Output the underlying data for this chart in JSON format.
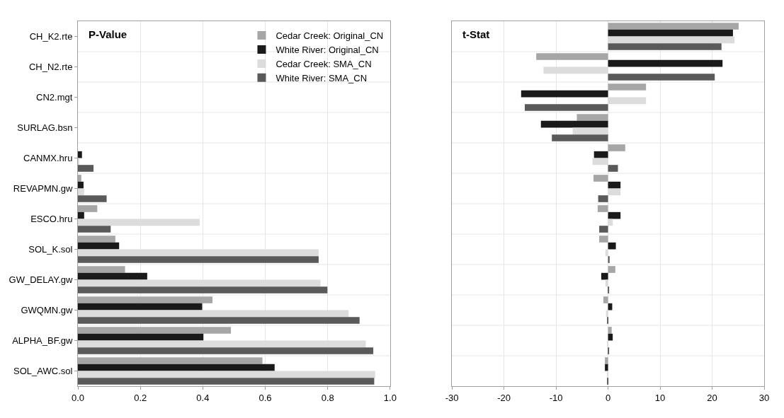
{
  "chart_data": [
    {
      "type": "bar",
      "orientation": "horizontal",
      "title": "P-Value",
      "categories": [
        "CH_K2.rte",
        "CH_N2.rte",
        "CN2.mgt",
        "SURLAG.bsn",
        "CANMX.hru",
        "REVAPMN.gw",
        "ESCO.hru",
        "SOL_K.sol",
        "GW_DELAY.gw",
        "GWQMN.gw",
        "ALPHA_BF.gw",
        "SOL_AWC.sol"
      ],
      "series": [
        {
          "name": "Cedar Creek: Original_CN",
          "color": "#a6a6a6",
          "values": [
            0,
            0,
            0,
            0,
            0,
            0.011,
            0.062,
            0.12,
            0.151,
            0.431,
            0.49,
            0.591
          ]
        },
        {
          "name": "White River: Original_CN",
          "color": "#1a1a1a",
          "values": [
            0,
            0,
            0,
            0,
            0.013,
            0.018,
            0.02,
            0.132,
            0.222,
            0.398,
            0.402,
            0.63
          ]
        },
        {
          "name": "Cedar Creek: SMA_CN",
          "color": "#dcdcdc",
          "values": [
            0,
            0,
            0,
            0,
            0.003,
            0.02,
            0.39,
            0.771,
            0.777,
            0.867,
            0.922,
            0.952
          ]
        },
        {
          "name": "White River: SMA_CN",
          "color": "#5a5a5a",
          "values": [
            0,
            0,
            0,
            0,
            0.05,
            0.092,
            0.105,
            0.771,
            0.799,
            0.902,
            0.946,
            0.949
          ]
        }
      ],
      "xlim": [
        0,
        1.0
      ],
      "xticks": [
        {
          "value": 0,
          "label": "0.0"
        },
        {
          "value": 0.2,
          "label": "0.2"
        },
        {
          "value": 0.4,
          "label": "0.4"
        },
        {
          "value": 0.6,
          "label": "0.6"
        },
        {
          "value": 0.8,
          "label": "0.8"
        },
        {
          "value": 1.0,
          "label": "1.0"
        }
      ],
      "grid": true,
      "legend": "top right"
    },
    {
      "type": "bar",
      "orientation": "horizontal",
      "title": "t-Stat",
      "categories": [
        null,
        null,
        null,
        null,
        null,
        null,
        null,
        null,
        null,
        null,
        null,
        null
      ],
      "series": [
        {
          "color": "#a6a6a6",
          "values": [
            25.1,
            -13.8,
            7.3,
            -6.0,
            3.3,
            -2.8,
            -2.0,
            -1.7,
            1.4,
            -0.9,
            0.7,
            -0.6
          ]
        },
        {
          "color": "#1a1a1a",
          "values": [
            24.0,
            22.0,
            -16.7,
            -12.9,
            -2.7,
            2.4,
            2.4,
            1.5,
            -1.3,
            0.8,
            0.9,
            -0.6
          ]
        },
        {
          "color": "#dcdcdc",
          "values": [
            24.3,
            -12.4,
            7.3,
            -6.8,
            -3.0,
            2.4,
            0.9,
            -0.5,
            -0.5,
            -0.4,
            -0.2,
            -0.1
          ]
        },
        {
          "color": "#5a5a5a",
          "values": [
            21.8,
            20.5,
            -16.0,
            -10.8,
            1.9,
            -1.9,
            -1.7,
            0.3,
            0.2,
            -0.1,
            0.1,
            -0.2
          ]
        }
      ],
      "xlim": [
        -30,
        30
      ],
      "xticks": [
        -30,
        -20,
        -10,
        0,
        10,
        20,
        30
      ],
      "grid": true
    }
  ]
}
